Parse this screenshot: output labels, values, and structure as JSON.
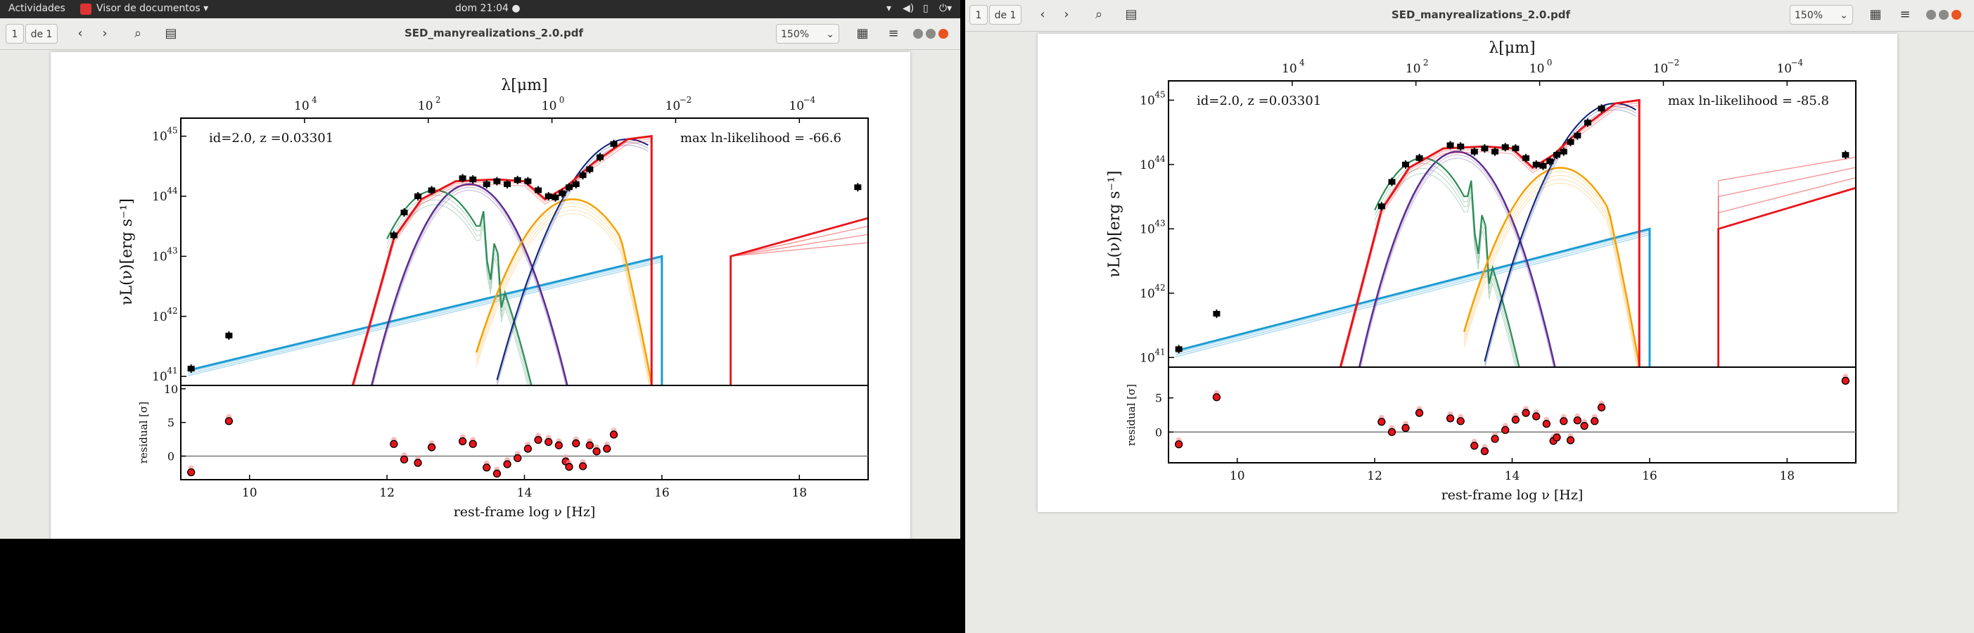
{
  "topbar": {
    "activities": "Actividades",
    "app_menu": "Visor de documentos",
    "clock": "dom 21:04",
    "sys_icons": [
      "network-icon",
      "volume-icon",
      "battery-icon",
      "power-icon"
    ]
  },
  "viewer_left": {
    "page_current": "1",
    "page_total": "de 1",
    "title": "SED_manyrealizations_2.0.pdf",
    "zoom": "150%"
  },
  "viewer_right": {
    "page_current": "1",
    "page_total": "de 1",
    "title": "SED_manyrealizations_2.0.pdf",
    "zoom": "150%"
  },
  "colors": {
    "agn": "#1a9bd3",
    "host": "#e8141b",
    "torus": "#f5a000",
    "disk": "#0b2178",
    "cold_dust": "#5c2d91",
    "pah": "#2e8b57",
    "data": "#000000"
  },
  "chart_data": [
    {
      "type": "line",
      "id_label": "id=2.0, z =0.03301",
      "likelihood_label": "max ln-likelihood = -66.6",
      "ylabel": "νL(ν)[erg s⁻¹]",
      "xlabel": "rest-frame log  ν [Hz]",
      "top_axis_label": "λ[μm]",
      "residual_ylabel": "residual [σ]",
      "xlim": [
        9,
        19
      ],
      "ylim_log10": [
        40.85,
        45.3
      ],
      "residual_ylim": [
        -3.5,
        10.5
      ],
      "x_ticks": [
        "10",
        "12",
        "14",
        "16",
        "18"
      ],
      "y_ticks": [
        "10",
        "10",
        "10",
        "10",
        "10"
      ],
      "y_tick_exps": [
        "41",
        "42",
        "43",
        "44",
        "45"
      ],
      "top_ticks": [
        "10",
        "10",
        "10",
        "10",
        "10"
      ],
      "top_tick_exps": [
        "4",
        "2",
        "0",
        "−2",
        "−4"
      ],
      "residual_ticks": [
        "0",
        "5",
        "10"
      ],
      "photometry": [
        [
          9.15,
          41.13
        ],
        [
          9.7,
          41.68
        ],
        [
          12.1,
          43.35
        ],
        [
          12.25,
          43.73
        ],
        [
          12.45,
          44.0
        ],
        [
          12.65,
          44.1
        ],
        [
          13.1,
          44.3
        ],
        [
          13.25,
          44.28
        ],
        [
          13.45,
          44.2
        ],
        [
          13.6,
          44.25
        ],
        [
          13.75,
          44.2
        ],
        [
          13.9,
          44.27
        ],
        [
          14.05,
          44.25
        ],
        [
          14.2,
          44.1
        ],
        [
          14.35,
          44.0
        ],
        [
          14.45,
          43.98
        ],
        [
          14.55,
          44.05
        ],
        [
          14.65,
          44.15
        ],
        [
          14.75,
          44.2
        ],
        [
          14.85,
          44.35
        ],
        [
          14.95,
          44.45
        ],
        [
          15.1,
          44.65
        ],
        [
          15.3,
          44.87
        ],
        [
          18.85,
          44.15
        ]
      ],
      "residuals": [
        [
          9.15,
          -2.4
        ],
        [
          9.7,
          5.2
        ],
        [
          12.1,
          1.8
        ],
        [
          12.25,
          -0.5
        ],
        [
          12.45,
          -1.0
        ],
        [
          12.65,
          1.3
        ],
        [
          13.1,
          2.2
        ],
        [
          13.25,
          1.8
        ],
        [
          13.45,
          -1.7
        ],
        [
          13.6,
          -2.6
        ],
        [
          13.75,
          -1.2
        ],
        [
          13.9,
          -0.3
        ],
        [
          14.05,
          1.1
        ],
        [
          14.2,
          2.4
        ],
        [
          14.35,
          2.1
        ],
        [
          14.5,
          1.6
        ],
        [
          14.6,
          -0.8
        ],
        [
          14.65,
          -1.6
        ],
        [
          14.75,
          1.9
        ],
        [
          14.85,
          -1.5
        ],
        [
          14.95,
          1.6
        ],
        [
          15.05,
          0.7
        ],
        [
          15.2,
          1.1
        ],
        [
          15.3,
          3.2
        ]
      ]
    },
    {
      "type": "line",
      "id_label": "id=2.0, z =0.03301",
      "likelihood_label": "max ln-likelihood = -85.8",
      "ylabel": "νL(ν)[erg s⁻¹]",
      "xlabel": "rest-frame log  ν [Hz]",
      "top_axis_label": "λ[μm]",
      "residual_ylabel": "residual [σ]",
      "xlim": [
        9,
        19
      ],
      "ylim_log10": [
        40.85,
        45.3
      ],
      "residual_ylim": [
        -4.5,
        9.5
      ],
      "x_ticks": [
        "10",
        "12",
        "14",
        "16",
        "18"
      ],
      "y_ticks": [
        "10",
        "10",
        "10",
        "10",
        "10"
      ],
      "y_tick_exps": [
        "41",
        "42",
        "43",
        "44",
        "45"
      ],
      "top_ticks": [
        "10",
        "10",
        "10",
        "10",
        "10"
      ],
      "top_tick_exps": [
        "4",
        "2",
        "0",
        "−2",
        "−4"
      ],
      "residual_ticks": [
        "0",
        "5"
      ],
      "photometry": [
        [
          9.15,
          41.13
        ],
        [
          9.7,
          41.68
        ],
        [
          12.1,
          43.35
        ],
        [
          12.25,
          43.73
        ],
        [
          12.45,
          44.0
        ],
        [
          12.65,
          44.1
        ],
        [
          13.1,
          44.3
        ],
        [
          13.25,
          44.28
        ],
        [
          13.45,
          44.2
        ],
        [
          13.6,
          44.25
        ],
        [
          13.75,
          44.2
        ],
        [
          13.9,
          44.27
        ],
        [
          14.05,
          44.25
        ],
        [
          14.2,
          44.1
        ],
        [
          14.35,
          44.0
        ],
        [
          14.45,
          43.98
        ],
        [
          14.55,
          44.05
        ],
        [
          14.65,
          44.15
        ],
        [
          14.75,
          44.2
        ],
        [
          14.85,
          44.35
        ],
        [
          14.95,
          44.45
        ],
        [
          15.1,
          44.65
        ],
        [
          15.3,
          44.87
        ],
        [
          18.85,
          44.15
        ]
      ],
      "residuals": [
        [
          9.15,
          -1.8
        ],
        [
          9.7,
          5.1
        ],
        [
          12.1,
          1.5
        ],
        [
          12.25,
          0.0
        ],
        [
          12.45,
          0.6
        ],
        [
          12.65,
          2.8
        ],
        [
          13.1,
          2.0
        ],
        [
          13.25,
          1.6
        ],
        [
          13.45,
          -2.0
        ],
        [
          13.6,
          -2.8
        ],
        [
          13.75,
          -1.0
        ],
        [
          13.9,
          0.3
        ],
        [
          14.05,
          1.8
        ],
        [
          14.2,
          2.8
        ],
        [
          14.35,
          2.3
        ],
        [
          14.5,
          1.2
        ],
        [
          14.6,
          -1.3
        ],
        [
          14.65,
          -0.8
        ],
        [
          14.75,
          1.6
        ],
        [
          14.85,
          -1.2
        ],
        [
          14.95,
          1.7
        ],
        [
          15.05,
          0.9
        ],
        [
          15.2,
          1.6
        ],
        [
          15.3,
          3.6
        ],
        [
          18.85,
          7.5
        ]
      ]
    }
  ]
}
